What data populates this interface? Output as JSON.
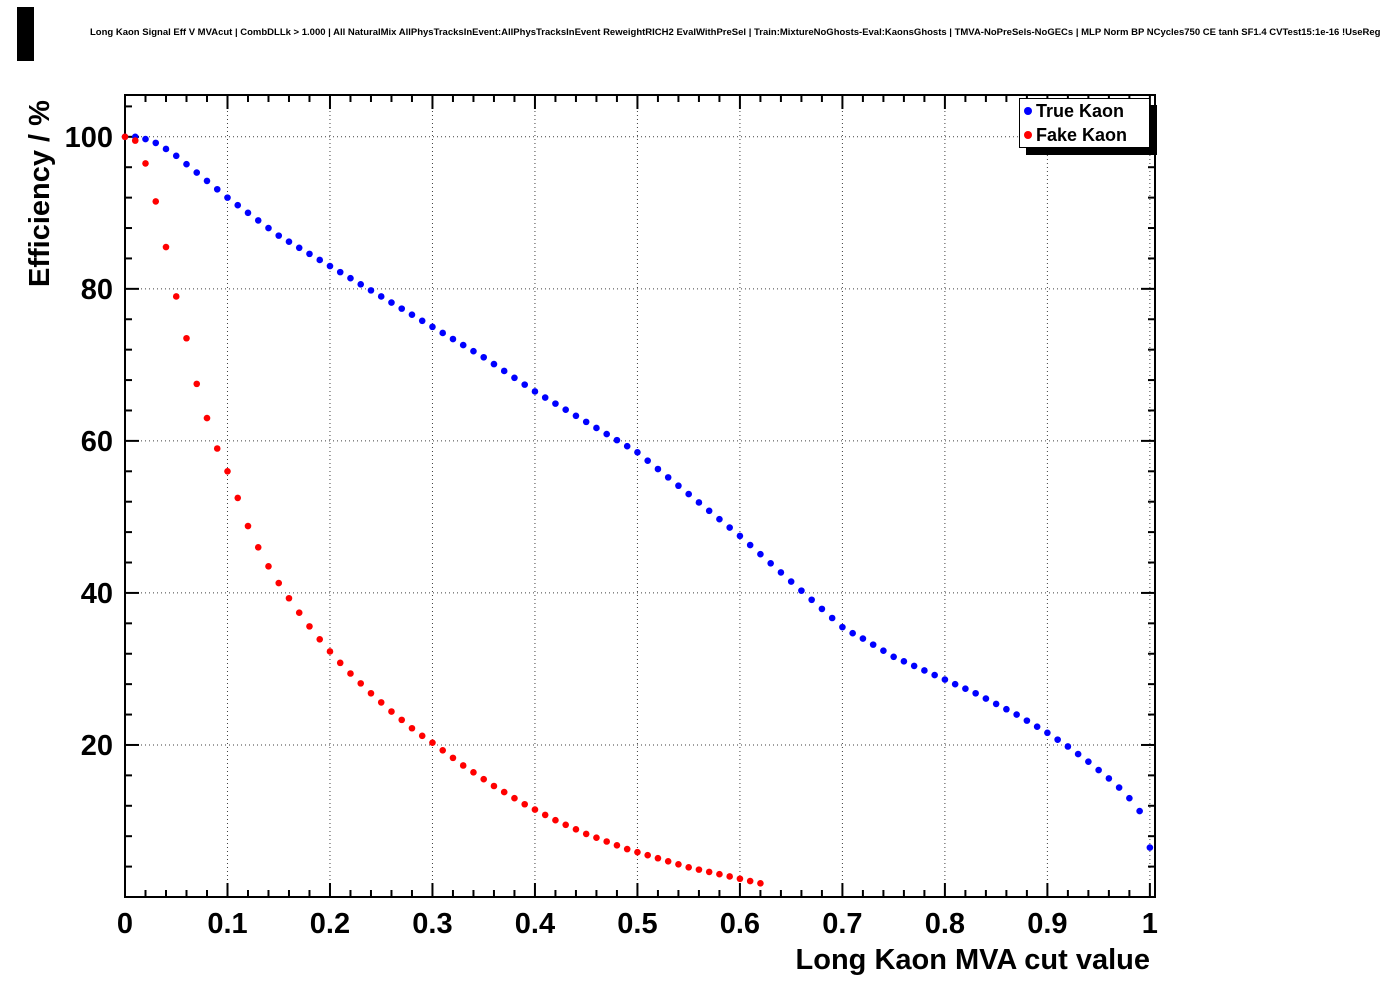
{
  "header": {
    "title": "Long Kaon Signal Eff V MVAcut | CombDLLk > 1.000 | All NaturalMix AllPhysTracksInEvent:AllPhysTracksInEvent ReweightRICH2 EvalWithPreSel | Train:MixtureNoGhosts-Eval:KaonsGhosts | TMVA-NoPreSels-NoGECs | MLP Norm BP NCycles750 CE tanh SF1.4 CVTest15:1e-16 !UseReg"
  },
  "chart_data": {
    "type": "scatter",
    "title": "Long Kaon Signal Eff V MVAcut | CombDLLk > 1.000 | All NaturalMix AllPhysTracksInEvent:AllPhysTracksInEvent ReweightRICH2 EvalWithPreSel | Train:MixtureNoGhosts-Eval:KaonsGhosts | TMVA-NoPreSels-NoGECs | MLP Norm BP NCycles750 CE tanh SF1.4 CVTest15:1e-16 !UseReg",
    "xlabel": "Long Kaon MVA cut value",
    "ylabel": "Efficiency / %",
    "xlim": [
      0,
      1.005
    ],
    "ylim": [
      0,
      105.5
    ],
    "grid": true,
    "legend": {
      "position": "top-right"
    },
    "x_ticks": [
      {
        "value": 0,
        "label": "0"
      },
      {
        "value": 0.1,
        "label": "0.1"
      },
      {
        "value": 0.2,
        "label": "0.2"
      },
      {
        "value": 0.3,
        "label": "0.3"
      },
      {
        "value": 0.4,
        "label": "0.4"
      },
      {
        "value": 0.5,
        "label": "0.5"
      },
      {
        "value": 0.6,
        "label": "0.6"
      },
      {
        "value": 0.7,
        "label": "0.7"
      },
      {
        "value": 0.8,
        "label": "0.8"
      },
      {
        "value": 0.9,
        "label": "0.9"
      },
      {
        "value": 1,
        "label": "1"
      }
    ],
    "y_ticks": [
      {
        "value": 20,
        "label": "20"
      },
      {
        "value": 40,
        "label": "40"
      },
      {
        "value": 60,
        "label": "60"
      },
      {
        "value": 80,
        "label": "80"
      },
      {
        "value": 100,
        "label": "100"
      }
    ],
    "series": [
      {
        "name": "True Kaon",
        "color": "#0000ff",
        "points": [
          [
            0.0,
            100.0
          ],
          [
            0.01,
            100.0
          ],
          [
            0.02,
            99.7
          ],
          [
            0.03,
            99.2
          ],
          [
            0.04,
            98.4
          ],
          [
            0.05,
            97.5
          ],
          [
            0.06,
            96.4
          ],
          [
            0.07,
            95.3
          ],
          [
            0.08,
            94.2
          ],
          [
            0.09,
            93.1
          ],
          [
            0.1,
            92.0
          ],
          [
            0.11,
            91.0
          ],
          [
            0.12,
            90.0
          ],
          [
            0.13,
            89.0
          ],
          [
            0.14,
            88.0
          ],
          [
            0.15,
            87.0
          ],
          [
            0.16,
            86.2
          ],
          [
            0.17,
            85.4
          ],
          [
            0.18,
            84.6
          ],
          [
            0.19,
            83.8
          ],
          [
            0.2,
            83.0
          ],
          [
            0.21,
            82.2
          ],
          [
            0.22,
            81.4
          ],
          [
            0.23,
            80.6
          ],
          [
            0.24,
            79.8
          ],
          [
            0.25,
            79.0
          ],
          [
            0.26,
            78.2
          ],
          [
            0.27,
            77.4
          ],
          [
            0.28,
            76.6
          ],
          [
            0.29,
            75.8
          ],
          [
            0.3,
            75.0
          ],
          [
            0.31,
            74.2
          ],
          [
            0.32,
            73.4
          ],
          [
            0.33,
            72.6
          ],
          [
            0.34,
            71.8
          ],
          [
            0.35,
            71.0
          ],
          [
            0.36,
            70.1
          ],
          [
            0.37,
            69.2
          ],
          [
            0.38,
            68.3
          ],
          [
            0.39,
            67.4
          ],
          [
            0.4,
            66.5
          ],
          [
            0.41,
            65.7
          ],
          [
            0.42,
            64.9
          ],
          [
            0.43,
            64.1
          ],
          [
            0.44,
            63.3
          ],
          [
            0.45,
            62.5
          ],
          [
            0.46,
            61.7
          ],
          [
            0.47,
            60.9
          ],
          [
            0.48,
            60.1
          ],
          [
            0.49,
            59.3
          ],
          [
            0.5,
            58.5
          ],
          [
            0.51,
            57.4
          ],
          [
            0.52,
            56.3
          ],
          [
            0.53,
            55.2
          ],
          [
            0.54,
            54.1
          ],
          [
            0.55,
            53.0
          ],
          [
            0.56,
            51.9
          ],
          [
            0.57,
            50.8
          ],
          [
            0.58,
            49.7
          ],
          [
            0.59,
            48.6
          ],
          [
            0.6,
            47.5
          ],
          [
            0.61,
            46.3
          ],
          [
            0.62,
            45.1
          ],
          [
            0.63,
            43.9
          ],
          [
            0.64,
            42.7
          ],
          [
            0.65,
            41.5
          ],
          [
            0.66,
            40.3
          ],
          [
            0.67,
            39.1
          ],
          [
            0.68,
            37.9
          ],
          [
            0.69,
            36.7
          ],
          [
            0.7,
            35.5
          ],
          [
            0.71,
            34.7
          ],
          [
            0.72,
            34.0
          ],
          [
            0.73,
            33.2
          ],
          [
            0.74,
            32.4
          ],
          [
            0.75,
            31.6
          ],
          [
            0.76,
            31.0
          ],
          [
            0.77,
            30.4
          ],
          [
            0.78,
            29.8
          ],
          [
            0.79,
            29.2
          ],
          [
            0.8,
            28.6
          ],
          [
            0.81,
            28.0
          ],
          [
            0.82,
            27.4
          ],
          [
            0.83,
            26.8
          ],
          [
            0.84,
            26.1
          ],
          [
            0.85,
            25.4
          ],
          [
            0.86,
            24.7
          ],
          [
            0.87,
            24.0
          ],
          [
            0.88,
            23.2
          ],
          [
            0.89,
            22.4
          ],
          [
            0.9,
            21.6
          ],
          [
            0.91,
            20.7
          ],
          [
            0.92,
            19.8
          ],
          [
            0.93,
            18.8
          ],
          [
            0.94,
            17.8
          ],
          [
            0.95,
            16.7
          ],
          [
            0.96,
            15.6
          ],
          [
            0.97,
            14.4
          ],
          [
            0.98,
            13.0
          ],
          [
            0.99,
            11.3
          ],
          [
            1.0,
            6.5
          ]
        ]
      },
      {
        "name": "Fake Kaon",
        "color": "#ff0000",
        "points": [
          [
            0.0,
            100.0
          ],
          [
            0.01,
            99.5
          ],
          [
            0.02,
            96.5
          ],
          [
            0.03,
            91.5
          ],
          [
            0.04,
            85.5
          ],
          [
            0.05,
            79.0
          ],
          [
            0.06,
            73.5
          ],
          [
            0.07,
            67.5
          ],
          [
            0.08,
            63.0
          ],
          [
            0.09,
            59.0
          ],
          [
            0.1,
            56.0
          ],
          [
            0.11,
            52.5
          ],
          [
            0.12,
            48.8
          ],
          [
            0.13,
            46.0
          ],
          [
            0.14,
            43.5
          ],
          [
            0.15,
            41.3
          ],
          [
            0.16,
            39.3
          ],
          [
            0.17,
            37.4
          ],
          [
            0.18,
            35.6
          ],
          [
            0.19,
            33.9
          ],
          [
            0.2,
            32.3
          ],
          [
            0.21,
            30.8
          ],
          [
            0.22,
            29.4
          ],
          [
            0.23,
            28.1
          ],
          [
            0.24,
            26.8
          ],
          [
            0.25,
            25.6
          ],
          [
            0.26,
            24.4
          ],
          [
            0.27,
            23.3
          ],
          [
            0.28,
            22.2
          ],
          [
            0.29,
            21.2
          ],
          [
            0.3,
            20.3
          ],
          [
            0.31,
            19.3
          ],
          [
            0.32,
            18.3
          ],
          [
            0.33,
            17.3
          ],
          [
            0.34,
            16.4
          ],
          [
            0.35,
            15.5
          ],
          [
            0.36,
            14.6
          ],
          [
            0.37,
            13.8
          ],
          [
            0.38,
            13.0
          ],
          [
            0.39,
            12.2
          ],
          [
            0.4,
            11.5
          ],
          [
            0.41,
            10.8
          ],
          [
            0.42,
            10.1
          ],
          [
            0.43,
            9.5
          ],
          [
            0.44,
            8.9
          ],
          [
            0.45,
            8.3
          ],
          [
            0.46,
            7.8
          ],
          [
            0.47,
            7.3
          ],
          [
            0.48,
            6.8
          ],
          [
            0.49,
            6.3
          ],
          [
            0.5,
            5.9
          ],
          [
            0.51,
            5.5
          ],
          [
            0.52,
            5.1
          ],
          [
            0.53,
            4.7
          ],
          [
            0.54,
            4.3
          ],
          [
            0.55,
            3.9
          ],
          [
            0.56,
            3.6
          ],
          [
            0.57,
            3.3
          ],
          [
            0.58,
            3.0
          ],
          [
            0.59,
            2.7
          ],
          [
            0.6,
            2.4
          ],
          [
            0.61,
            2.1
          ],
          [
            0.62,
            1.8
          ]
        ]
      }
    ]
  }
}
